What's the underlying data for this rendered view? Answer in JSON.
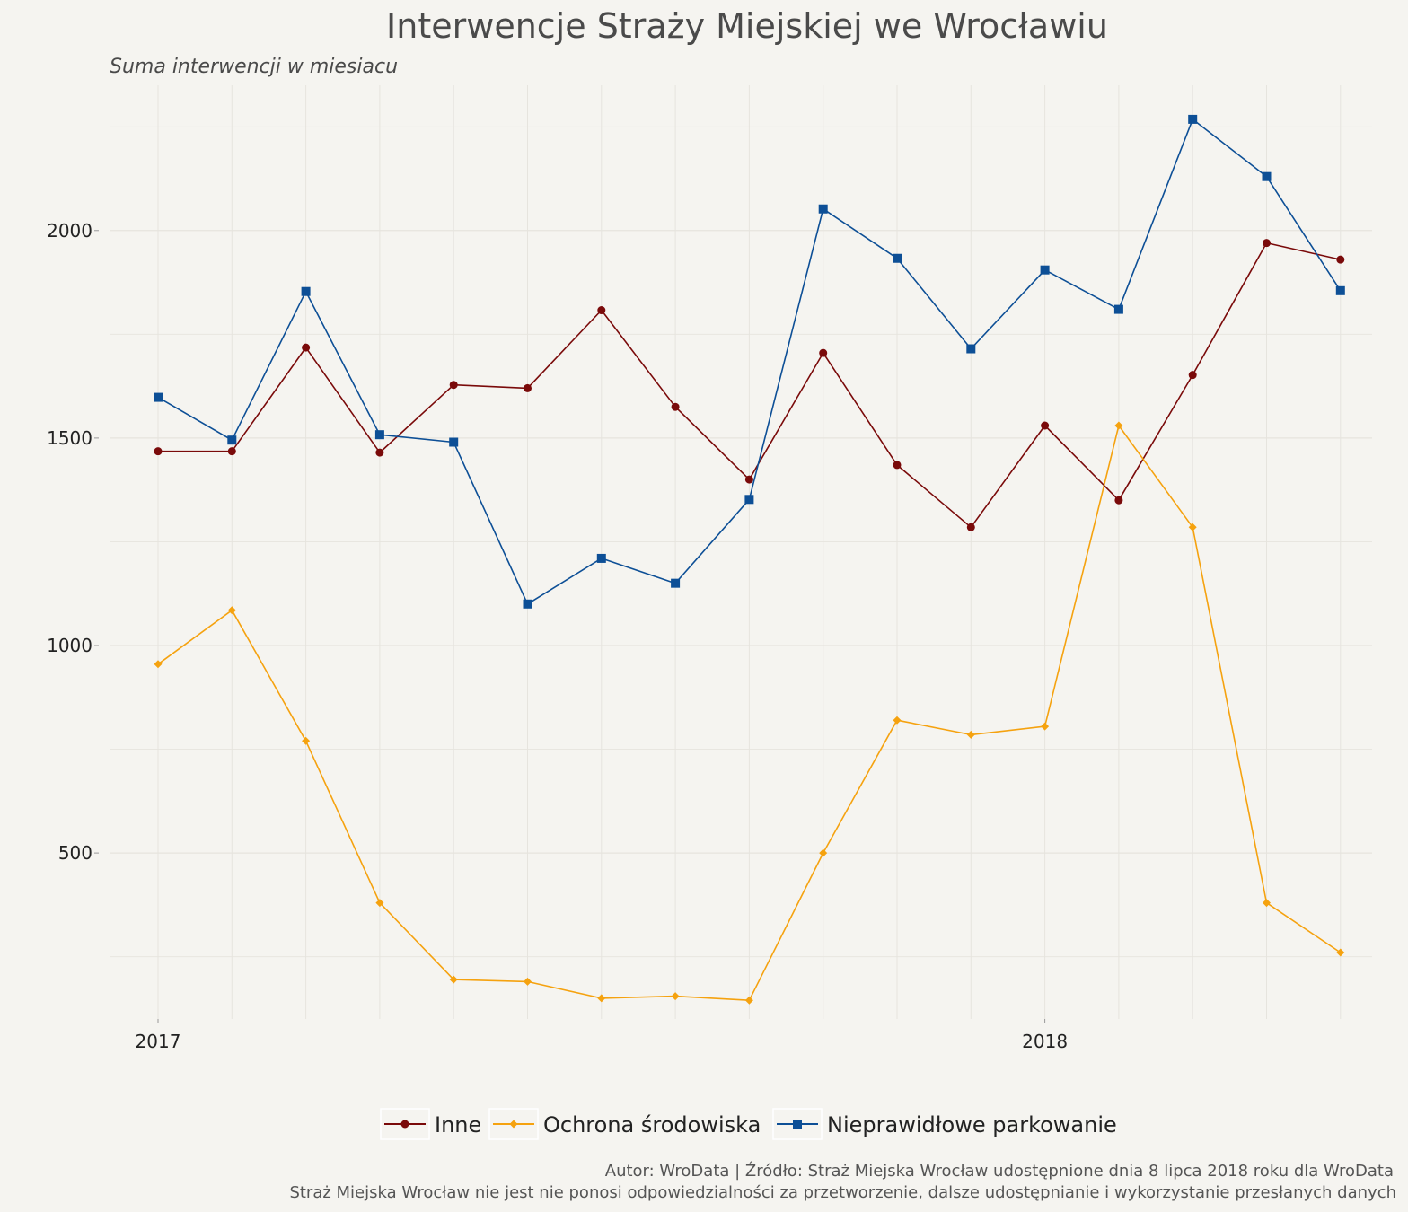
{
  "chart_data": {
    "type": "line",
    "title": "Interwencje Straży Miejskiej we Wrocławiu",
    "subtitle": "Suma interwencji w miesiacu",
    "xlabel": "",
    "ylabel": "",
    "x": [
      "2017-01",
      "2017-02",
      "2017-03",
      "2017-04",
      "2017-05",
      "2017-06",
      "2017-07",
      "2017-08",
      "2017-09",
      "2017-10",
      "2017-11",
      "2017-12",
      "2018-01",
      "2018-02",
      "2018-03",
      "2018-04",
      "2018-05"
    ],
    "x_ticks": [
      {
        "value": "2017-01",
        "label": "2017"
      },
      {
        "value": "2018-01",
        "label": "2018"
      }
    ],
    "y_ticks": [
      500,
      1000,
      1500,
      2000
    ],
    "ylim": [
      100,
      2350
    ],
    "grid": true,
    "legend_position": "bottom",
    "series": [
      {
        "name": "Inne",
        "color": "#7a0a0a",
        "marker": "circle",
        "values": [
          1468,
          1468,
          1718,
          1465,
          1628,
          1620,
          1808,
          1575,
          1400,
          1705,
          1435,
          1285,
          1530,
          1350,
          1652,
          1970,
          1930
        ]
      },
      {
        "name": "Ochrona środowiska",
        "color": "#f5a20f",
        "marker": "diamond",
        "values": [
          955,
          1085,
          770,
          380,
          195,
          190,
          150,
          155,
          145,
          500,
          820,
          785,
          805,
          1530,
          1285,
          380,
          260
        ]
      },
      {
        "name": "Nieprawidłowe parkowanie",
        "color": "#0d4f96",
        "marker": "square",
        "values": [
          1598,
          1495,
          1853,
          1508,
          1490,
          1100,
          1210,
          1150,
          1352,
          2052,
          1933,
          1715,
          1905,
          1810,
          2268,
          2130,
          1855
        ]
      }
    ]
  },
  "caption": {
    "line1": "Autor: WroData | Źródło: Straż Miejska Wrocław udostępnione dnia 8 lipca 2018 roku dla WroData",
    "line2": "Straż Miejska Wrocław nie jest nie ponosi odpowiedzialności za przetworzenie, dalsze udostępnianie i wykorzystanie przesłanych danych"
  },
  "colors": {
    "background": "#f5f4f0",
    "grid": "#e6e4de"
  }
}
